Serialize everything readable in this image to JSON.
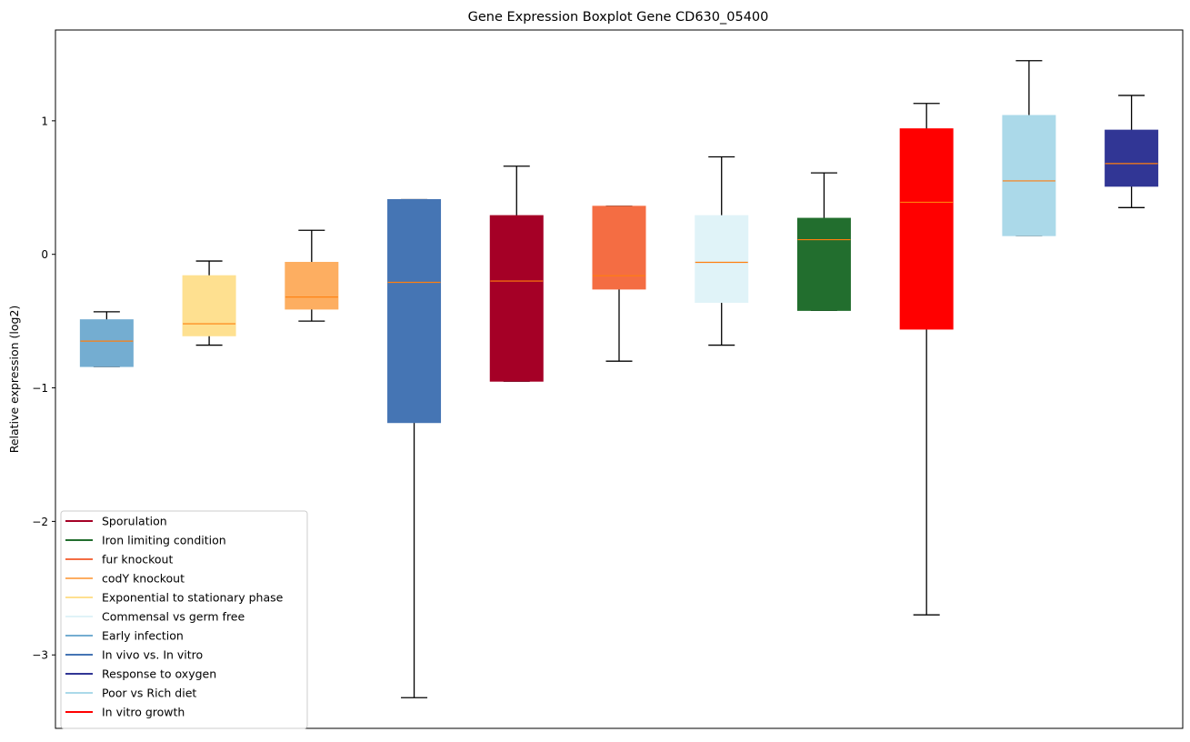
{
  "chart_data": {
    "type": "boxplot",
    "title": "Gene Expression Boxplot Gene CD630_05400",
    "xlabel": "",
    "ylabel": "Relative expression (log2)",
    "ylim": [
      -3.55,
      1.68
    ],
    "yticks": [
      1,
      0,
      -1,
      -2,
      -3
    ],
    "ytick_labels": [
      "1",
      "0",
      "−1",
      "−2",
      "−3"
    ],
    "grid": false,
    "legend_position": "lower-left",
    "median_color": "#ff7f0e",
    "boxes": [
      {
        "name": "Early infection",
        "color": "#74add1",
        "whislo": -0.84,
        "q1": -0.84,
        "med": -0.65,
        "q3": -0.49,
        "whishi": -0.43
      },
      {
        "name": "Exponential to stationary phase",
        "color": "#fee090",
        "whislo": -0.68,
        "q1": -0.61,
        "med": -0.52,
        "q3": -0.16,
        "whishi": -0.05
      },
      {
        "name": "codY knockout",
        "color": "#fdae61",
        "whislo": -0.5,
        "q1": -0.41,
        "med": -0.32,
        "q3": -0.06,
        "whishi": 0.18
      },
      {
        "name": "In vivo vs. In vitro",
        "color": "#4575b4",
        "whislo": -3.32,
        "q1": -1.26,
        "med": -0.21,
        "q3": 0.41,
        "whishi": 0.41
      },
      {
        "name": "Sporulation",
        "color": "#a50026",
        "whislo": -0.95,
        "q1": -0.95,
        "med": -0.2,
        "q3": 0.29,
        "whishi": 0.66
      },
      {
        "name": "fur knockout",
        "color": "#f46d43",
        "whislo": -0.8,
        "q1": -0.26,
        "med": -0.16,
        "q3": 0.36,
        "whishi": 0.36
      },
      {
        "name": "Commensal vs germ free",
        "color": "#e0f3f8",
        "whislo": -0.68,
        "q1": -0.36,
        "med": -0.06,
        "q3": 0.29,
        "whishi": 0.73
      },
      {
        "name": "Iron limiting condition",
        "color": "#226e2e",
        "whislo": -0.42,
        "q1": -0.42,
        "med": 0.11,
        "q3": 0.27,
        "whishi": 0.61
      },
      {
        "name": "In vitro growth",
        "color": "#ff0000",
        "whislo": -2.7,
        "q1": -0.56,
        "med": 0.39,
        "q3": 0.94,
        "whishi": 1.13
      },
      {
        "name": "Poor vs Rich diet",
        "color": "#abd9e9",
        "whislo": 0.14,
        "q1": 0.14,
        "med": 0.55,
        "q3": 1.04,
        "whishi": 1.45
      },
      {
        "name": "Response to oxygen",
        "color": "#313695",
        "whislo": 0.35,
        "q1": 0.51,
        "med": 0.68,
        "q3": 0.93,
        "whishi": 1.19
      }
    ],
    "legend": [
      {
        "label": "Sporulation",
        "color": "#a50026"
      },
      {
        "label": "Iron limiting condition",
        "color": "#226e2e"
      },
      {
        "label": "fur knockout",
        "color": "#f46d43"
      },
      {
        "label": "codY knockout",
        "color": "#fdae61"
      },
      {
        "label": "Exponential to stationary phase",
        "color": "#fee090"
      },
      {
        "label": "Commensal vs germ free",
        "color": "#e0f3f8"
      },
      {
        "label": "Early infection",
        "color": "#74add1"
      },
      {
        "label": "In vivo vs. In vitro",
        "color": "#4575b4"
      },
      {
        "label": "Response to oxygen",
        "color": "#313695"
      },
      {
        "label": "Poor vs Rich diet",
        "color": "#abd9e9"
      },
      {
        "label": "In vitro growth",
        "color": "#ff0000"
      }
    ]
  }
}
